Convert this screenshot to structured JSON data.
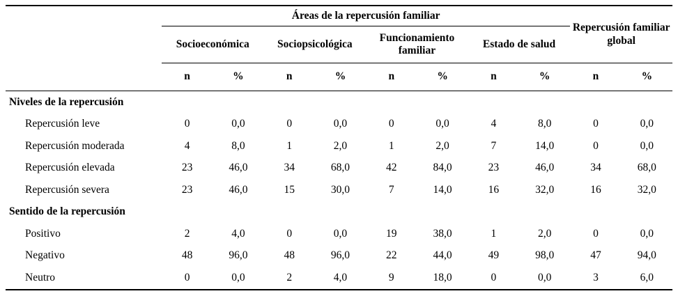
{
  "table": {
    "areas_group_title": "Áreas de la repercusión familiar",
    "global_group_title": "Repercusión familiar global",
    "groups": [
      "Socioeconómica",
      "Sociopsicológica",
      "Funcionamiento familiar",
      "Estado de salud"
    ],
    "subheaders": {
      "n": "n",
      "pct": "%"
    },
    "sections": [
      {
        "title": "Niveles de la repercusión",
        "rows": [
          {
            "label": "Repercusión leve",
            "values": [
              "0",
              "0,0",
              "0",
              "0,0",
              "0",
              "0,0",
              "4",
              "8,0",
              "0",
              "0,0"
            ]
          },
          {
            "label": "Repercusión moderada",
            "values": [
              "4",
              "8,0",
              "1",
              "2,0",
              "1",
              "2,0",
              "7",
              "14,0",
              "0",
              "0,0"
            ]
          },
          {
            "label": "Repercusión elevada",
            "values": [
              "23",
              "46,0",
              "34",
              "68,0",
              "42",
              "84,0",
              "23",
              "46,0",
              "34",
              "68,0"
            ]
          },
          {
            "label": "Repercusión severa",
            "values": [
              "23",
              "46,0",
              "15",
              "30,0",
              "7",
              "14,0",
              "16",
              "32,0",
              "16",
              "32,0"
            ]
          }
        ]
      },
      {
        "title": "Sentido de la repercusión",
        "rows": [
          {
            "label": "Positivo",
            "values": [
              "2",
              "4,0",
              "0",
              "0,0",
              "19",
              "38,0",
              "1",
              "2,0",
              "0",
              "0,0"
            ]
          },
          {
            "label": "Negativo",
            "values": [
              "48",
              "96,0",
              "48",
              "96,0",
              "22",
              "44,0",
              "49",
              "98,0",
              "47",
              "94,0"
            ]
          },
          {
            "label": "Neutro",
            "values": [
              "0",
              "0,0",
              "2",
              "4,0",
              "9",
              "18,0",
              "0",
              "0,0",
              "3",
              "6,0"
            ]
          }
        ]
      }
    ]
  },
  "colors": {
    "text": "#000000",
    "rule": "#000000",
    "background": "#ffffff"
  }
}
